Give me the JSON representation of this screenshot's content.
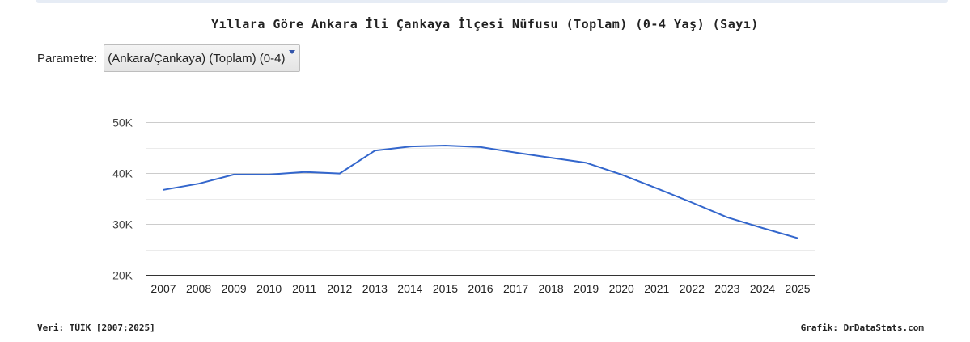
{
  "title": "Yıllara Göre Ankara İli Çankaya İlçesi Nüfusu (Toplam) (0-4 Yaş) (Sayı)",
  "parameter": {
    "label": "Parametre:",
    "selected": "(Ankara/Çankaya) (Toplam) (0-4)"
  },
  "footer": {
    "source": "Veri: TÜİK [2007;2025]",
    "credit": "Grafik: DrDataStats.com"
  },
  "colors": {
    "line": "#3366cc",
    "grid": "#cccccc",
    "minor_grid": "#ebebeb",
    "text": "#222222",
    "axis_text": "#444444"
  },
  "chart_data": {
    "type": "line",
    "title": "Yıllara Göre Ankara İli Çankaya İlçesi Nüfusu (Toplam) (0-4 Yaş) (Sayı)",
    "xlabel": "",
    "ylabel": "",
    "categories": [
      "2007",
      "2008",
      "2009",
      "2010",
      "2011",
      "2012",
      "2013",
      "2014",
      "2015",
      "2016",
      "2017",
      "2018",
      "2019",
      "2020",
      "2021",
      "2022",
      "2023",
      "2024",
      "2025"
    ],
    "series": [
      {
        "values": [
          36700,
          37900,
          39700,
          39700,
          40200,
          39900,
          44400,
          45200,
          45400,
          45100,
          44000,
          43000,
          42000,
          39700,
          37000,
          34200,
          31300,
          29200,
          27200
        ]
      }
    ],
    "ylim": [
      20000,
      50000
    ],
    "yticks": [
      20000,
      30000,
      40000,
      50000
    ],
    "ytick_labels": [
      "20K",
      "30K",
      "40K",
      "50K"
    ],
    "grid": true,
    "legend": "none"
  }
}
